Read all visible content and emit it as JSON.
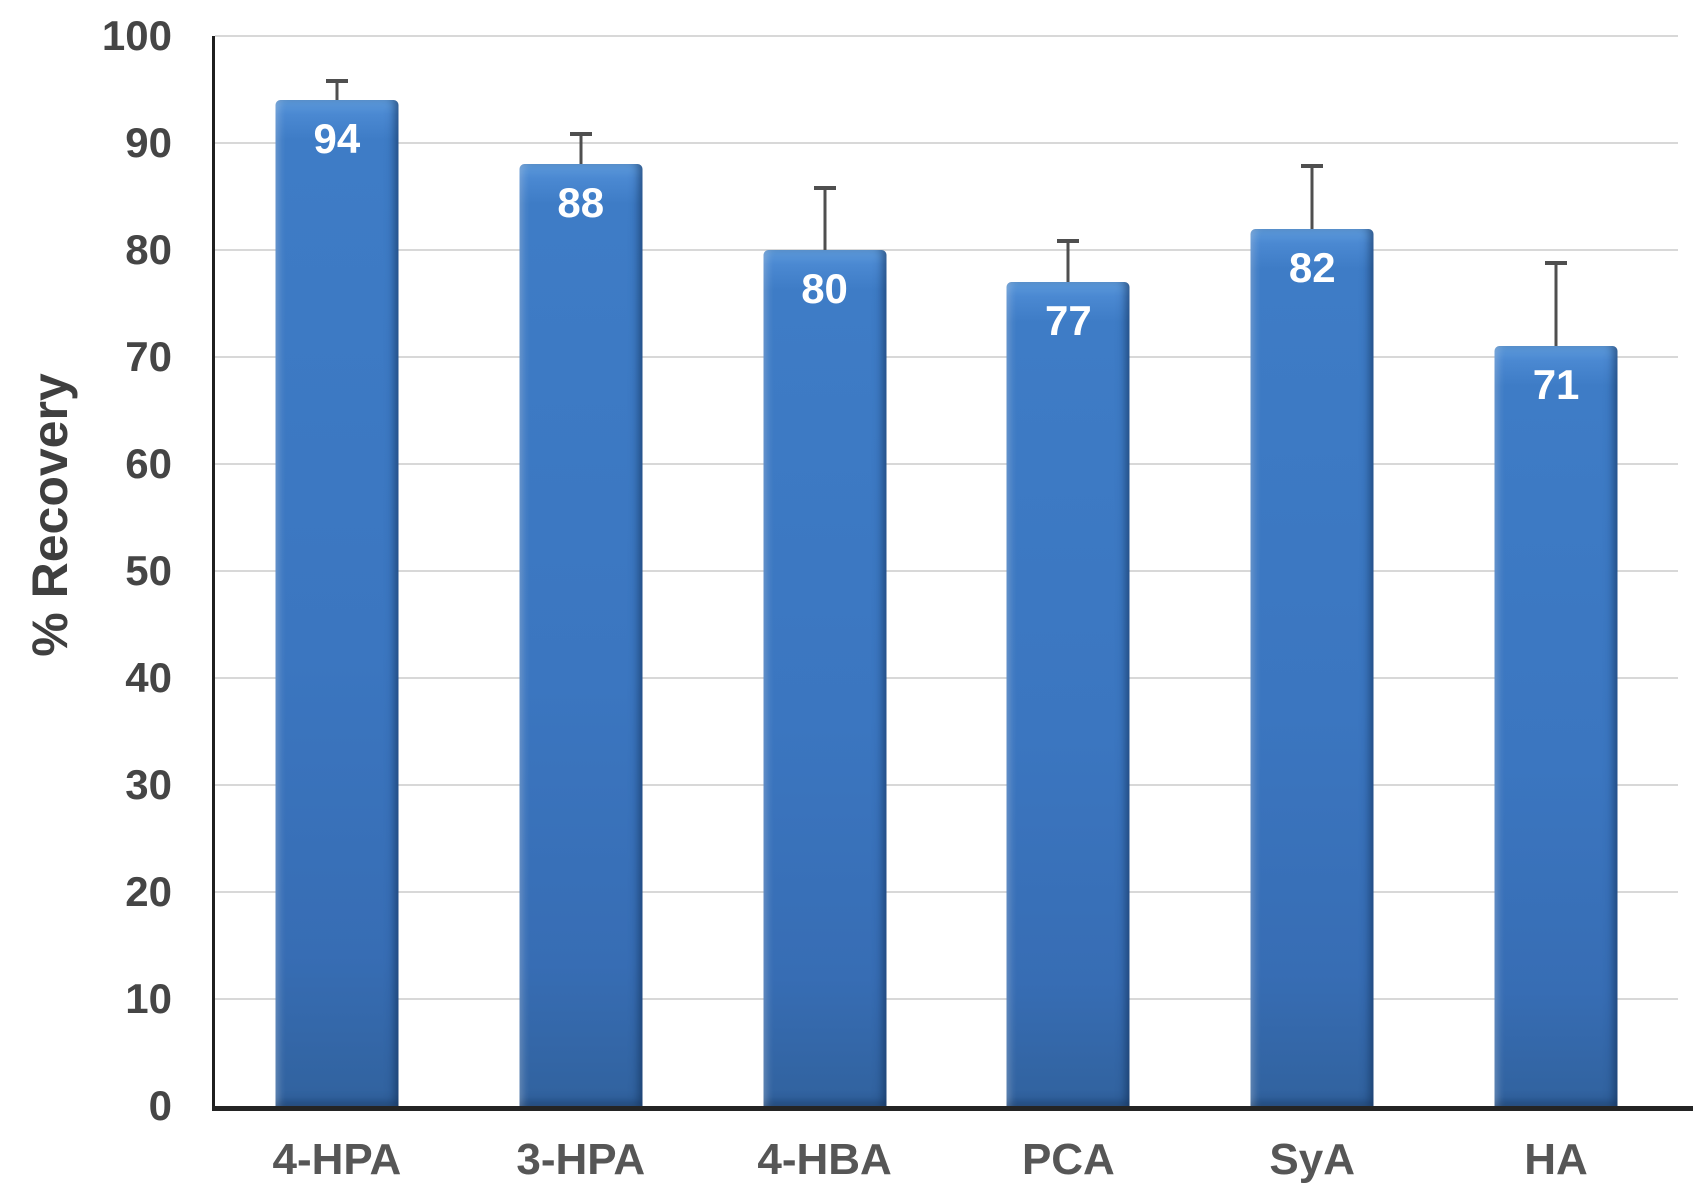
{
  "chart_data": {
    "type": "bar",
    "title": "",
    "xlabel": "",
    "ylabel": "% Recovery",
    "categories": [
      "4-HPA",
      "3-HPA",
      "4-HBA",
      "PCA",
      "SyA",
      "HA"
    ],
    "values": [
      94,
      88,
      80,
      77,
      82,
      71
    ],
    "value_labels": [
      "94",
      "88",
      "80",
      "77",
      "82",
      "71"
    ],
    "error_plus": [
      2,
      3,
      6,
      4,
      6,
      8
    ],
    "error_top": [
      96,
      91,
      86,
      81,
      88,
      79
    ],
    "ylim": [
      0,
      100
    ],
    "ytick_step": 10,
    "yticks": [
      0,
      10,
      20,
      30,
      40,
      50,
      60,
      70,
      80,
      90,
      100
    ],
    "grid": "horizontal-on",
    "legend": "none",
    "error_bar_style": "upper-only",
    "colors": {
      "bar_fill": "#3d7ac4",
      "bar_highlight": "#5e9bdb",
      "bar_shadow": "#31629e",
      "value_label": "#ffffff",
      "error_bar": "#4f4f4f",
      "gridline": "#d8d8d8",
      "axis_line": "#1f1f1f",
      "tick_label": "#4a4a4a",
      "background": "#ffffff"
    }
  }
}
